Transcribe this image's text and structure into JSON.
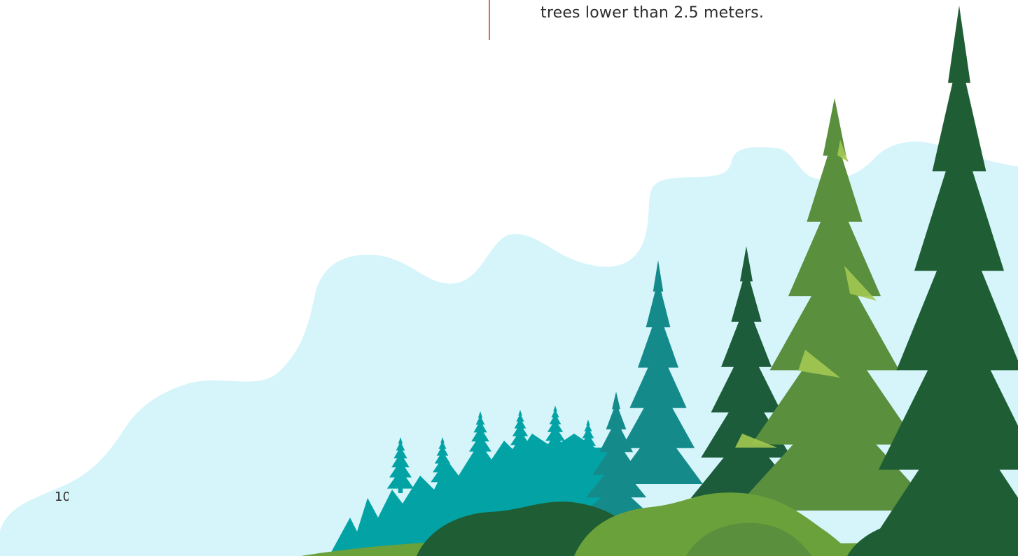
{
  "document": {
    "body_text": "trees lower than 2.5 meters.",
    "page_number": "10"
  },
  "illustration": {
    "subject": "forest-of-spruce-trees-on-hill",
    "colors": {
      "sky": "#d6f5fb",
      "teal_trees": "#03a3a5",
      "mid_teal_trees": "#158a8b",
      "dark_trees": "#1f5e34",
      "green_trees": "#5a8f3d",
      "highlight": "#a3c851",
      "ground": "#6aa13a",
      "accent_rule": "#e06a3b"
    }
  }
}
